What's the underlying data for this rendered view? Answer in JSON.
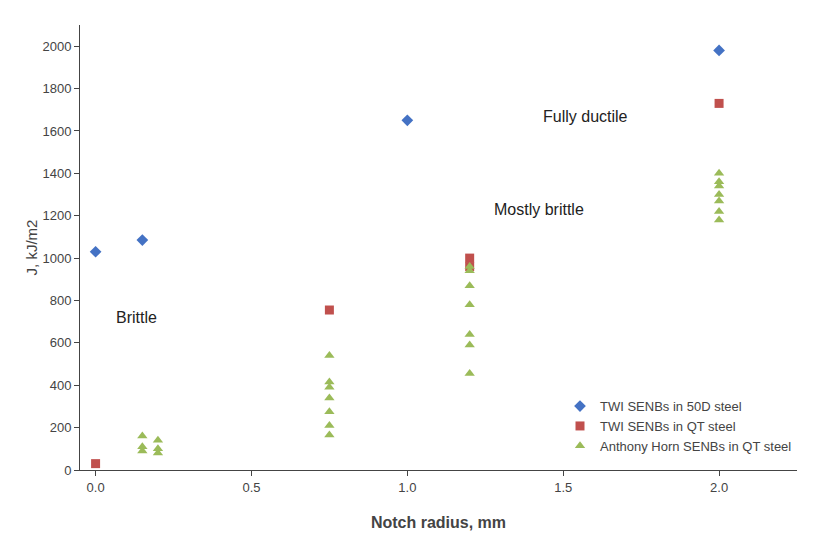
{
  "chart_data": {
    "type": "scatter",
    "x_label": "Notch radius, mm",
    "y_label": "J, kJ/m2",
    "series": [
      {
        "name": "TWI SENBs in 50D steel",
        "color": "#4472C4",
        "marker": "diamond",
        "x": [
          0.0,
          0.15,
          1.0,
          2.0
        ],
        "values": [
          1030,
          1085,
          1650,
          1980
        ]
      },
      {
        "name": "TWI SENBs in QT steel",
        "color": "#C0504D",
        "marker": "square",
        "x": [
          0.0,
          0.75,
          1.2,
          1.2,
          2.0
        ],
        "values": [
          30,
          755,
          1000,
          960,
          1730
        ]
      },
      {
        "name": "Anthony Horn SENBs in QT steel",
        "color": "#9BBB59",
        "marker": "triangle-up",
        "x": [
          0.15,
          0.15,
          0.15,
          0.2,
          0.2,
          0.2,
          0.75,
          0.75,
          0.75,
          0.75,
          0.75,
          0.75,
          0.75,
          1.2,
          1.2,
          1.2,
          1.2,
          1.2,
          1.2,
          1.2,
          2.0,
          2.0,
          2.0,
          2.0,
          2.0,
          2.0,
          2.0
        ],
        "values": [
          90,
          110,
          160,
          80,
          100,
          140,
          165,
          210,
          275,
          340,
          390,
          415,
          540,
          455,
          590,
          640,
          780,
          870,
          940,
          960,
          1180,
          1220,
          1270,
          1300,
          1340,
          1360,
          1400
        ]
      }
    ],
    "annotations": [
      {
        "text": "Brittle",
        "x": 0.06,
        "y": 720
      },
      {
        "text": "Mostly brittle",
        "x": 1.27,
        "y": 1230
      },
      {
        "text": "Fully ductile",
        "x": 1.43,
        "y": 1670
      }
    ],
    "xlim": [
      -0.05,
      2.25
    ],
    "xticks": [
      {
        "value": 0,
        "label": "0.0"
      },
      0.5,
      {
        "value": 1.0,
        "label": "1.0"
      },
      1.5,
      {
        "value": 2.0,
        "label": "2.0"
      }
    ],
    "ylim": [
      0,
      2100
    ],
    "yticks": [
      0,
      200,
      400,
      600,
      800,
      1000,
      1200,
      1400,
      1600,
      1800,
      2000
    ],
    "grid": false,
    "legend": "lower right"
  }
}
